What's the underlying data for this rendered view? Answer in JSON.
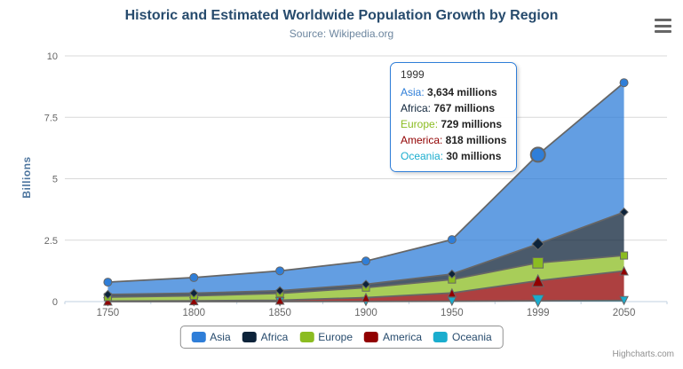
{
  "title": "Historic and Estimated Worldwide Population Growth by Region",
  "subtitle": "Source: Wikipedia.org",
  "credit": "Highcharts.com",
  "icons": {
    "context_menu": "hamburger-icon"
  },
  "y_axis": {
    "title": "Billions",
    "ticks": [
      0,
      2.5,
      5,
      7.5,
      10
    ]
  },
  "x_axis": {
    "categories": [
      "1750",
      "1800",
      "1850",
      "1900",
      "1950",
      "1999",
      "2050"
    ]
  },
  "tooltip": {
    "header": "1999",
    "border_color": "#2f7ed8",
    "rows": [
      {
        "name": "Asia",
        "value": "3,634 millions",
        "color": "#2f7ed8"
      },
      {
        "name": "Africa",
        "value": "767 millions",
        "color": "#0d233a"
      },
      {
        "name": "Europe",
        "value": "729 millions",
        "color": "#8bbc21"
      },
      {
        "name": "America",
        "value": "818 millions",
        "color": "#910000"
      },
      {
        "name": "Oceania",
        "value": "30 millions",
        "color": "#1aadce"
      }
    ]
  },
  "legend": {
    "items": [
      {
        "label": "Asia",
        "color": "#2f7ed8"
      },
      {
        "label": "Africa",
        "color": "#0d233a"
      },
      {
        "label": "Europe",
        "color": "#8bbc21"
      },
      {
        "label": "America",
        "color": "#910000"
      },
      {
        "label": "Oceania",
        "color": "#1aadce"
      }
    ]
  },
  "chart_data": {
    "type": "area",
    "stacking": "normal",
    "title": "Historic and Estimated Worldwide Population Growth by Region",
    "subtitle": "Source: Wikipedia.org",
    "xlabel": "",
    "ylabel": "Billions",
    "units": "millions",
    "ylim": [
      0,
      10
    ],
    "grid": true,
    "legend_position": "bottom",
    "categories": [
      "1750",
      "1800",
      "1850",
      "1900",
      "1950",
      "1999",
      "2050"
    ],
    "series": [
      {
        "name": "Asia",
        "color": "#2f7ed8",
        "marker": "circle",
        "values": [
          502,
          635,
          809,
          947,
          1402,
          3634,
          5268
        ]
      },
      {
        "name": "Africa",
        "color": "#0d233a",
        "marker": "diamond",
        "values": [
          106,
          107,
          111,
          133,
          221,
          767,
          1766
        ]
      },
      {
        "name": "Europe",
        "color": "#8bbc21",
        "marker": "square",
        "values": [
          163,
          203,
          276,
          408,
          547,
          729,
          628
        ]
      },
      {
        "name": "America",
        "color": "#910000",
        "marker": "triangle",
        "values": [
          18,
          31,
          54,
          156,
          339,
          818,
          1201
        ]
      },
      {
        "name": "Oceania",
        "color": "#1aadce",
        "marker": "triangle-down",
        "values": [
          2,
          2,
          2,
          6,
          13,
          30,
          46
        ]
      }
    ],
    "stacked_totals_billions": [
      0.791,
      0.978,
      1.252,
      1.65,
      2.522,
      5.978,
      8.909
    ],
    "fill_opacity": 0.75,
    "line_color": "#666666",
    "hover": {
      "category": "1999"
    }
  }
}
